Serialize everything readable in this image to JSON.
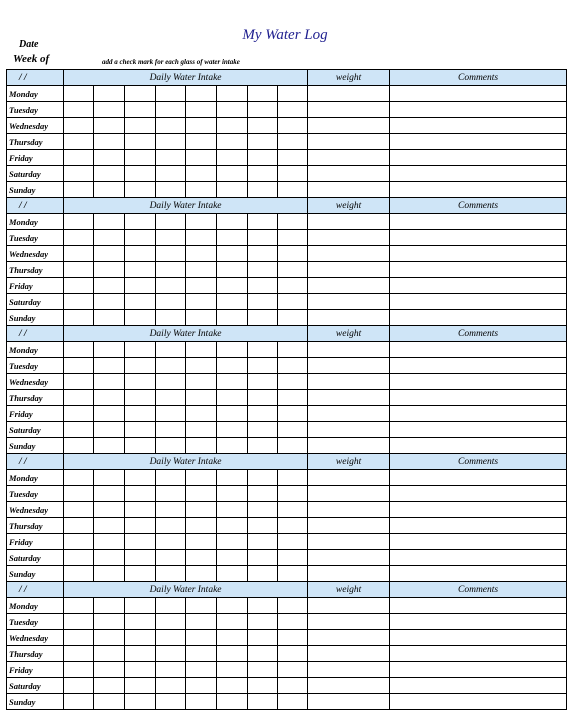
{
  "title": "My  Water Log",
  "date_label": "Date",
  "week_label": "Week of",
  "instruction": "add a check mark for each glass of water intake",
  "header": {
    "date_slash": "/   /",
    "intake": "Daily Water Intake",
    "weight": "weight",
    "comments": "Comments"
  },
  "days": [
    "Monday",
    "Tuesday",
    "Wednesday",
    "Thursday",
    "Friday",
    "Saturday",
    "Sunday"
  ],
  "weeks_shown": 5,
  "glass_columns": 7
}
